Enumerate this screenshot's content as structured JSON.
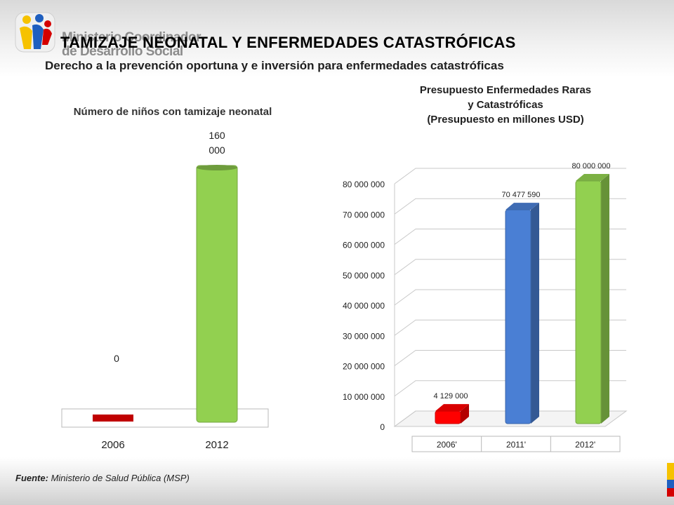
{
  "header": {
    "logo_text_line1": "Ministerio Coordinador",
    "logo_text_line2": "de Desarrollo Social",
    "title": "TAMIZAJE NEONATAL  Y ENFERMEDADES CATASTRÓFICAS",
    "subtitle": "Derecho a la prevención oportuna y e inversión para enfermedades catastróficas"
  },
  "colors": {
    "red": "#d40000",
    "blue": "#4a7fd4",
    "green": "#92d050",
    "dark_green": "#6aa33a"
  },
  "chart_data": [
    {
      "type": "bar",
      "title": "Número de niños con tamizaje neonatal",
      "categories": [
        "2006",
        "2012"
      ],
      "values": [
        0,
        160000
      ],
      "data_labels": [
        "0",
        "160 000"
      ],
      "bar_colors": [
        "#c00000",
        "#92d050"
      ],
      "legend": "none",
      "grid": false
    },
    {
      "type": "bar",
      "title": "Presupuesto Enfermedades Raras\ny Catastróficas\n(Presupuesto en millones USD)",
      "categories": [
        "2006'",
        "2011'",
        "2012'"
      ],
      "values": [
        4129000,
        70477590,
        80000000
      ],
      "data_labels": [
        "4 129 000",
        "70 477 590",
        "80 000 000"
      ],
      "bar_colors": [
        "#ff0000",
        "#4a7fd4",
        "#92d050"
      ],
      "ylim": [
        0,
        80000000
      ],
      "yticks": [
        0,
        10000000,
        20000000,
        30000000,
        40000000,
        50000000,
        60000000,
        70000000,
        80000000
      ],
      "ytick_labels": [
        "0",
        "10 000 000",
        "20 000 000",
        "30 000 000",
        "40 000 000",
        "50 000 000",
        "60 000 000",
        "70 000 000",
        "80 000 000"
      ],
      "legend": "none",
      "grid": true
    }
  ],
  "footer": {
    "source_label": "Fuente:",
    "source_text": " Ministerio de Salud Pública (MSP)"
  }
}
